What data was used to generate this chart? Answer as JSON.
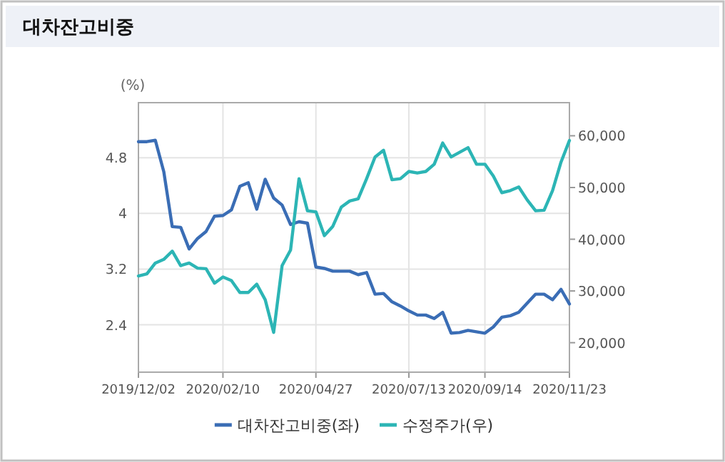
{
  "chart_data": {
    "type": "line",
    "title": "대차잔고비중",
    "ylabel": "(%)",
    "x": [
      "2019-12-02",
      "2019-12-09",
      "2019-12-16",
      "2019-12-23",
      "2019-12-30",
      "2020-01-06",
      "2020-01-13",
      "2020-01-20",
      "2020-01-27",
      "2020-02-03",
      "2020-02-10",
      "2020-02-17",
      "2020-02-24",
      "2020-03-02",
      "2020-03-09",
      "2020-03-16",
      "2020-03-23",
      "2020-03-30",
      "2020-04-06",
      "2020-04-13",
      "2020-04-20",
      "2020-04-27",
      "2020-05-04",
      "2020-05-11",
      "2020-05-18",
      "2020-05-25",
      "2020-06-01",
      "2020-06-08",
      "2020-06-15",
      "2020-06-22",
      "2020-06-29",
      "2020-07-06",
      "2020-07-13",
      "2020-07-20",
      "2020-07-27",
      "2020-08-03",
      "2020-08-10",
      "2020-08-17",
      "2020-08-24",
      "2020-08-31",
      "2020-09-07",
      "2020-09-14",
      "2020-09-21",
      "2020-09-28",
      "2020-10-05",
      "2020-10-12",
      "2020-10-19",
      "2020-10-26",
      "2020-11-02",
      "2020-11-09",
      "2020-11-16",
      "2020-11-23"
    ],
    "series": [
      {
        "name": "대차잔고비중(좌)",
        "color": "#3a6db5",
        "values": [
          5.03,
          5.03,
          5.05,
          4.6,
          3.81,
          3.8,
          3.49,
          3.64,
          3.74,
          3.96,
          3.97,
          4.05,
          4.39,
          4.44,
          4.06,
          4.49,
          4.22,
          4.12,
          3.84,
          3.88,
          3.86,
          3.23,
          3.21,
          3.17,
          3.17,
          3.17,
          3.12,
          3.15,
          2.84,
          2.85,
          2.73,
          2.67,
          2.6,
          2.54,
          2.54,
          2.49,
          2.58,
          2.28,
          2.29,
          2.32,
          2.3,
          2.28,
          2.37,
          2.51,
          2.53,
          2.58,
          2.71,
          2.84,
          2.84,
          2.76,
          2.91,
          2.7
        ]
      },
      {
        "name": "수정주가(우)",
        "color": "#2cb5b5",
        "axis": "y2",
        "values": [
          32900,
          33300,
          35400,
          36100,
          37700,
          34900,
          35400,
          34400,
          34300,
          31500,
          32700,
          32000,
          29700,
          29700,
          31300,
          28300,
          22000,
          34900,
          37900,
          51700,
          45500,
          45300,
          40700,
          42500,
          46200,
          47400,
          47800,
          51700,
          55900,
          57200,
          51500,
          51700,
          53100,
          52800,
          53100,
          54500,
          58600,
          55900,
          56800,
          57700,
          54500,
          54500,
          52200,
          49000,
          49400,
          50100,
          47600,
          45500,
          45600,
          49400,
          54900,
          59100
        ]
      }
    ],
    "xlim": [
      "2019-12-02",
      "2020-11-23"
    ],
    "xticks": [
      {
        "value": "2019-12-02",
        "label": "2019/12/02"
      },
      {
        "value": "2020-02-10",
        "label": "2020/02/10"
      },
      {
        "value": "2020-04-27",
        "label": "2020/04/27"
      },
      {
        "value": "2020-07-13",
        "label": "2020/07/13"
      },
      {
        "value": "2020-09-14",
        "label": "2020/09/14"
      },
      {
        "value": "2020-11-23",
        "label": "2020/11/23"
      }
    ],
    "ylim": [
      1.72,
      5.59
    ],
    "yticks": [
      2.4,
      3.2,
      4,
      4.8
    ],
    "y2lim": [
      14300,
      66400
    ],
    "y2ticks": [
      {
        "value": 20000,
        "label": "20,000"
      },
      {
        "value": 30000,
        "label": "30,000"
      },
      {
        "value": 40000,
        "label": "40,000"
      },
      {
        "value": 50000,
        "label": "50,000"
      },
      {
        "value": 60000,
        "label": "60,000"
      }
    ],
    "grid": true,
    "legend": "bottom"
  }
}
